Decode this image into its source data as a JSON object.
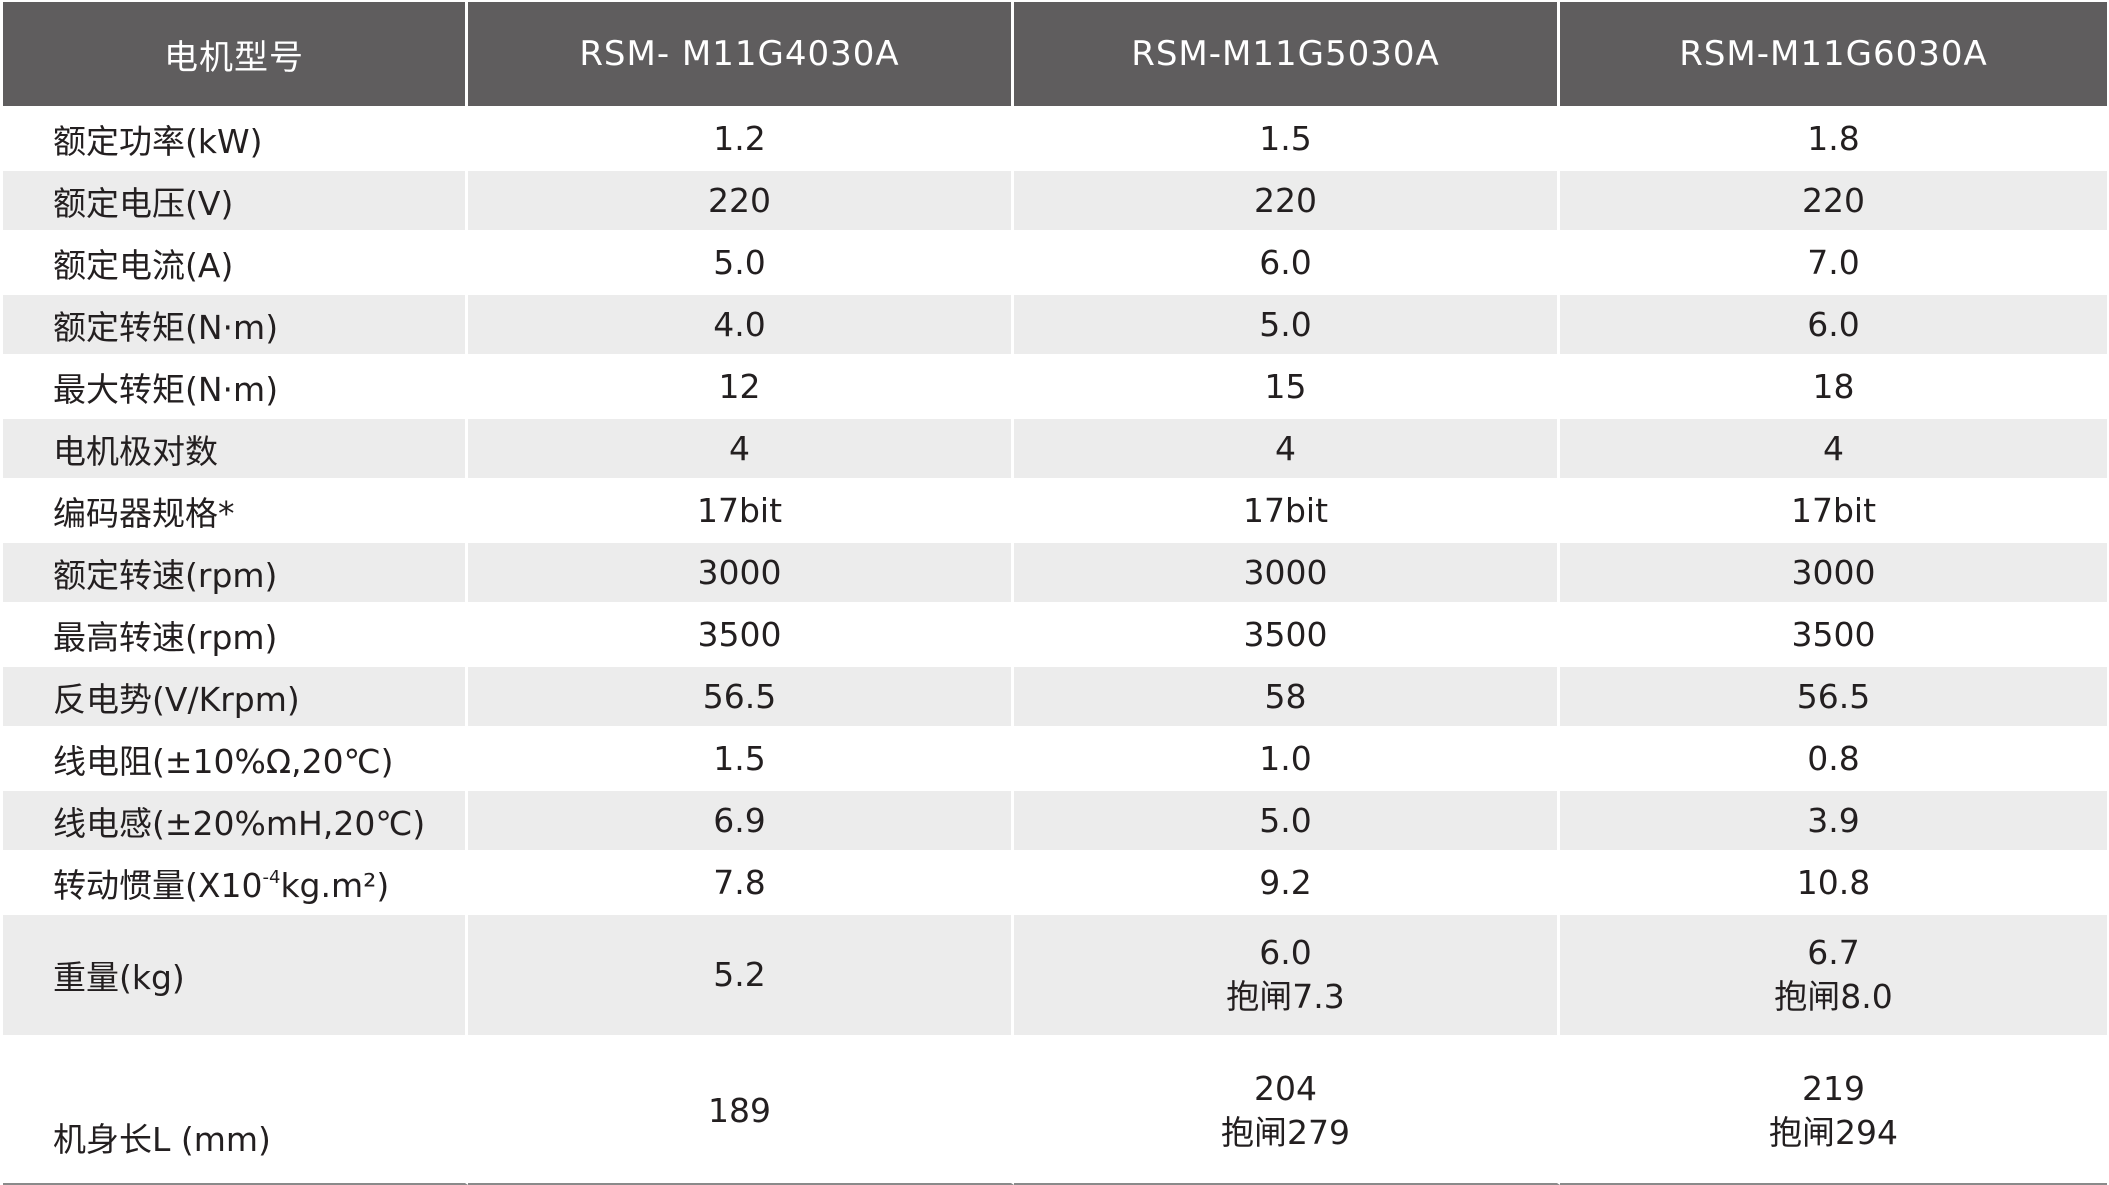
{
  "header": {
    "label": "电机型号",
    "models": [
      "RSM- M11G4030A",
      "RSM-M11G5030A",
      "RSM-M11G6030A"
    ]
  },
  "rows": [
    {
      "label": "额定功率(kW)",
      "values": [
        "1.2",
        "1.5",
        "1.8"
      ]
    },
    {
      "label": "额定电压(V)",
      "values": [
        "220",
        "220",
        "220"
      ]
    },
    {
      "label": "额定电流(A)",
      "values": [
        "5.0",
        "6.0",
        "7.0"
      ]
    },
    {
      "label": "额定转矩(N·m)",
      "values": [
        "4.0",
        "5.0",
        "6.0"
      ]
    },
    {
      "label": "最大转矩(N·m)",
      "values": [
        "12",
        "15",
        "18"
      ]
    },
    {
      "label": "电机极对数",
      "values": [
        "4",
        "4",
        "4"
      ]
    },
    {
      "label": "编码器规格*",
      "values": [
        "17bit",
        "17bit",
        "17bit"
      ]
    },
    {
      "label": "额定转速(rpm)",
      "values": [
        "3000",
        "3000",
        "3000"
      ]
    },
    {
      "label": "最高转速(rpm)",
      "values": [
        "3500",
        "3500",
        "3500"
      ]
    },
    {
      "label": "反电势(V/Krpm)",
      "values": [
        "56.5",
        "58",
        "56.5"
      ]
    },
    {
      "label": "线电阻(±10%Ω,20℃)",
      "values": [
        "1.5",
        "1.0",
        "0.8"
      ]
    },
    {
      "label": "线电感(±20%mH,20℃)",
      "values": [
        "6.9",
        "5.0",
        "3.9"
      ]
    },
    {
      "label_pre": "转动惯量(X10",
      "label_sup": "-4",
      "label_post": "kg.m²)",
      "values": [
        "7.8",
        "9.2",
        "10.8"
      ]
    },
    {
      "label": "重量(kg)",
      "values": [
        [
          "5.2"
        ],
        [
          "6.0",
          "抱闸7.3"
        ],
        [
          "6.7",
          "抱闸8.0"
        ]
      ]
    },
    {
      "label": "机身长L (mm)",
      "values": [
        [
          "189"
        ],
        [
          "204",
          "抱闸279"
        ],
        [
          "219",
          "抱闸294"
        ]
      ]
    }
  ]
}
